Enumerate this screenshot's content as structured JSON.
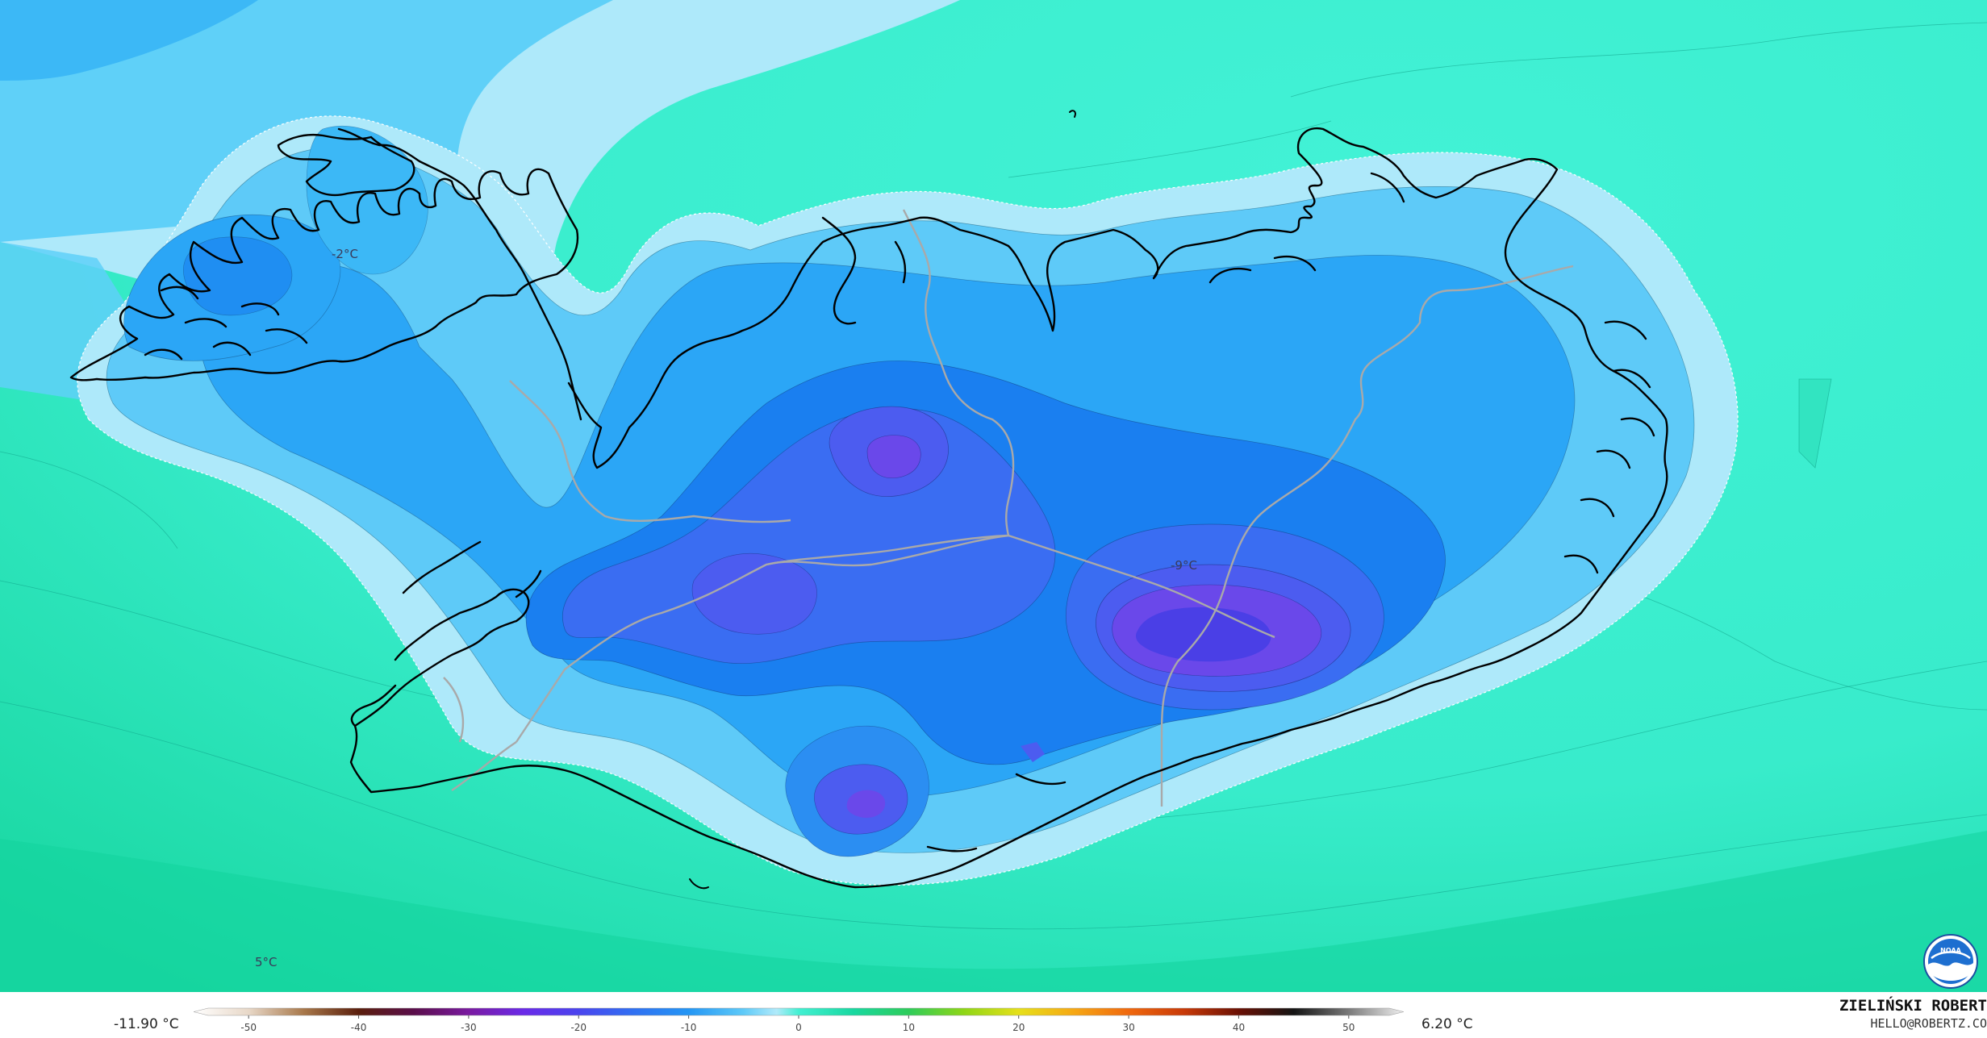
{
  "map": {
    "type": "temperature contour map",
    "region": "Iceland",
    "palette": {
      "sea": "#40f0cf",
      "sea_deep": "#18d9a4",
      "coast_light": "#aee9fa",
      "land_mid": "#5dccf8",
      "land_blue": "#2da4f6",
      "inland": "#1b8cf0",
      "cold": "#4d6ff0",
      "coldest": "#6547eb",
      "coastline": "#000000",
      "borders": "#a9a9a9"
    },
    "annotations": [
      {
        "id": "west-fjords",
        "text": "-2°C"
      },
      {
        "id": "vatnajokull",
        "text": "-9°C"
      },
      {
        "id": "southwest-sea",
        "text": "5°C"
      }
    ]
  },
  "legend": {
    "min_text": "-11.90 °C",
    "max_text": "6.20 °C",
    "unit": "°C",
    "ticks": [
      "-50",
      "-40",
      "-30",
      "-20",
      "-10",
      "0",
      "10",
      "20",
      "30",
      "40",
      "50"
    ],
    "range": [
      -55,
      55
    ],
    "stops": [
      {
        "v": -55,
        "c": "#ffffff"
      },
      {
        "v": -50,
        "c": "#e8d8c8"
      },
      {
        "v": -45,
        "c": "#a8784a"
      },
      {
        "v": -40,
        "c": "#5a1e0c"
      },
      {
        "v": -35,
        "c": "#5a0e4a"
      },
      {
        "v": -30,
        "c": "#7a1aa0"
      },
      {
        "v": -25,
        "c": "#6a2ae8"
      },
      {
        "v": -20,
        "c": "#4a44ee"
      },
      {
        "v": -15,
        "c": "#3070f2"
      },
      {
        "v": -10,
        "c": "#2496f4"
      },
      {
        "v": -5,
        "c": "#5ecaf8"
      },
      {
        "v": -2,
        "c": "#b0eafa"
      },
      {
        "v": 0,
        "c": "#42f0d2"
      },
      {
        "v": 5,
        "c": "#18d8a0"
      },
      {
        "v": 10,
        "c": "#2ecc5a"
      },
      {
        "v": 15,
        "c": "#8ed616"
      },
      {
        "v": 20,
        "c": "#e6e01a"
      },
      {
        "v": 25,
        "c": "#f6a814"
      },
      {
        "v": 30,
        "c": "#f0680e"
      },
      {
        "v": 35,
        "c": "#c83a08"
      },
      {
        "v": 40,
        "c": "#6a1004"
      },
      {
        "v": 45,
        "c": "#141414"
      },
      {
        "v": 50,
        "c": "#7a7a7a"
      },
      {
        "v": 55,
        "c": "#f0f0f0"
      }
    ]
  },
  "credit": {
    "name": "ZIELIŃSKI ROBERT",
    "email": "HELLO@ROBERTZ.CO"
  },
  "logo": {
    "name": "noaa-logo",
    "text": "NOAA"
  }
}
